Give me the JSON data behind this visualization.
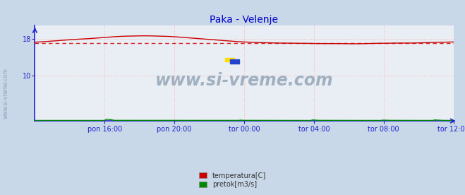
{
  "title": "Paka - Velenje",
  "title_color": "#0000cc",
  "fig_bg_color": "#c8d8e8",
  "plot_bg_color": "#e8eef4",
  "grid_color": "#ffb0b0",
  "axis_color": "#2222cc",
  "yticks": [
    10,
    18
  ],
  "ylim": [
    0,
    21
  ],
  "xlim": [
    0,
    288
  ],
  "xtick_labels": [
    "pon 16:00",
    "pon 20:00",
    "tor 00:00",
    "tor 04:00",
    "tor 08:00",
    "tor 12:00"
  ],
  "xtick_positions": [
    48,
    96,
    144,
    192,
    240,
    288
  ],
  "avg_line_value": 17.1,
  "avg_line_color": "#cc0000",
  "temp_color": "#cc0000",
  "flow_color": "#008800",
  "watermark_text": "www.si-vreme.com",
  "watermark_color": "#9aaabb",
  "side_text": "www.si-vreme.com",
  "legend_items": [
    "temperatura[C]",
    "pretok[m3/s]"
  ],
  "legend_colors": [
    "#cc0000",
    "#008800"
  ],
  "temp_data_x": [
    0,
    6,
    12,
    18,
    24,
    30,
    36,
    42,
    48,
    54,
    60,
    66,
    72,
    78,
    84,
    90,
    96,
    102,
    108,
    114,
    120,
    126,
    132,
    138,
    144,
    150,
    156,
    162,
    168,
    174,
    180,
    186,
    192,
    198,
    204,
    210,
    216,
    222,
    228,
    234,
    240,
    246,
    252,
    258,
    264,
    270,
    276,
    282,
    288
  ],
  "temp_data_y": [
    17.3,
    17.4,
    17.55,
    17.7,
    17.85,
    17.95,
    18.05,
    18.2,
    18.35,
    18.5,
    18.6,
    18.65,
    18.7,
    18.7,
    18.65,
    18.6,
    18.5,
    18.35,
    18.2,
    18.05,
    17.9,
    17.75,
    17.6,
    17.45,
    17.35,
    17.25,
    17.2,
    17.15,
    17.1,
    17.1,
    17.05,
    17.05,
    17.0,
    17.0,
    17.0,
    17.0,
    16.95,
    16.95,
    17.0,
    17.05,
    17.05,
    17.1,
    17.1,
    17.1,
    17.15,
    17.2,
    17.25,
    17.3,
    17.35
  ],
  "flow_data_x": [
    0,
    48,
    49,
    50,
    55,
    140,
    141,
    142,
    143,
    190,
    191,
    195,
    238,
    239,
    244,
    274,
    275,
    280,
    288
  ],
  "flow_data_y": [
    0.1,
    0.1,
    0.35,
    0.38,
    0.12,
    0.1,
    0.15,
    0.18,
    0.12,
    0.1,
    0.22,
    0.12,
    0.1,
    0.18,
    0.12,
    0.1,
    0.22,
    0.12,
    0.1
  ]
}
